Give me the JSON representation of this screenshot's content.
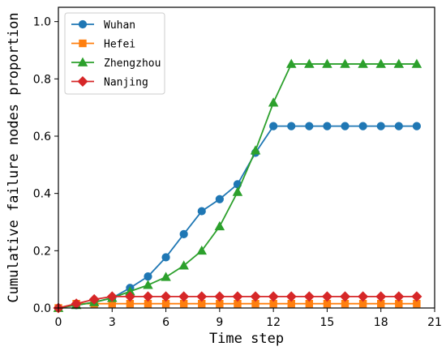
{
  "chart_data": {
    "type": "line",
    "xlabel": "Time step",
    "ylabel": "Cumulative failure nodes proportion",
    "xlim": [
      0,
      21
    ],
    "ylim": [
      0,
      1.05
    ],
    "xticks": [
      0,
      3,
      6,
      9,
      12,
      15,
      18,
      21
    ],
    "yticks": [
      0.0,
      0.2,
      0.4,
      0.6,
      0.8,
      1.0
    ],
    "ytick_labels": [
      "0.0",
      "0.2",
      "0.4",
      "0.6",
      "0.8",
      "1.0"
    ],
    "grid": false,
    "legend_position": "top-left",
    "x": [
      0,
      1,
      2,
      3,
      4,
      5,
      6,
      7,
      8,
      9,
      10,
      11,
      12,
      13,
      14,
      15,
      16,
      17,
      18,
      19,
      20
    ],
    "series": [
      {
        "name": "Wuhan",
        "color": "#1f77b4",
        "marker": "circle",
        "values": [
          0.0,
          0.01,
          0.02,
          0.035,
          0.07,
          0.11,
          0.177,
          0.258,
          0.338,
          0.38,
          0.432,
          0.542,
          0.635,
          0.635,
          0.635,
          0.635,
          0.635,
          0.635,
          0.635,
          0.635,
          0.635
        ]
      },
      {
        "name": "Hefei",
        "color": "#ff7f0e",
        "marker": "square",
        "values": [
          0.0,
          0.015,
          0.015,
          0.015,
          0.015,
          0.015,
          0.015,
          0.015,
          0.015,
          0.015,
          0.015,
          0.015,
          0.015,
          0.015,
          0.015,
          0.015,
          0.015,
          0.015,
          0.015,
          0.015,
          0.015
        ]
      },
      {
        "name": "Zhengzhou",
        "color": "#2ca02c",
        "marker": "triangle",
        "values": [
          0.0,
          0.01,
          0.02,
          0.035,
          0.058,
          0.08,
          0.108,
          0.148,
          0.2,
          0.285,
          0.405,
          0.55,
          0.717,
          0.852,
          0.852,
          0.852,
          0.852,
          0.852,
          0.852,
          0.852,
          0.852
        ]
      },
      {
        "name": "Nanjing",
        "color": "#d62728",
        "marker": "diamond",
        "values": [
          0.0,
          0.015,
          0.03,
          0.04,
          0.04,
          0.04,
          0.04,
          0.04,
          0.04,
          0.04,
          0.04,
          0.04,
          0.04,
          0.04,
          0.04,
          0.04,
          0.04,
          0.04,
          0.04,
          0.04,
          0.04
        ]
      }
    ]
  }
}
